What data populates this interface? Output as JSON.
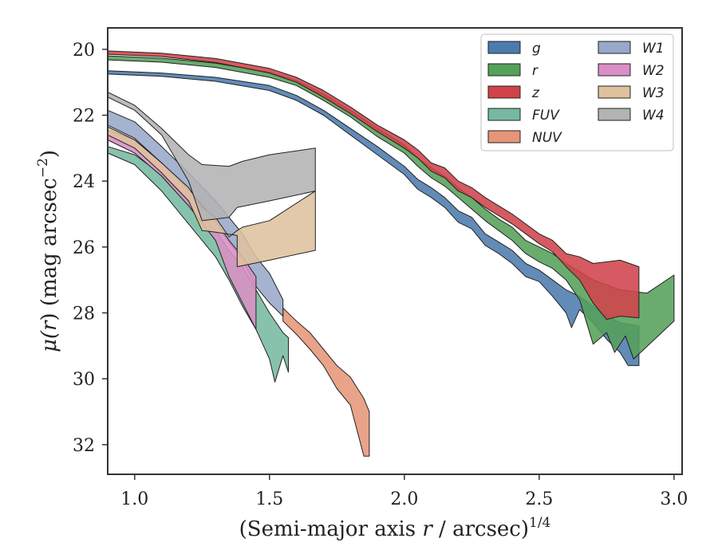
{
  "chart_data": {
    "type": "area",
    "xlabel": "(Semi-major axis r / arcsec)^1/4",
    "xlabel_parts": {
      "prefix": "(Semi-major axis ",
      "var": "r",
      "suffix": " / arcsec)",
      "exp": "1/4"
    },
    "ylabel": "μ(r) (mag arcsec^−2)",
    "ylabel_parts": {
      "mu": "μ(",
      "var": "r",
      "mid": ") (mag arcsec",
      "exp": "−2",
      "end": ")"
    },
    "xlim": [
      0.9,
      3.03
    ],
    "ylim": [
      32.9,
      19.35
    ],
    "y_inverted": true,
    "xticks": [
      1.0,
      1.5,
      2.0,
      2.5,
      3.0
    ],
    "xtick_labels": [
      "1.0",
      "1.5",
      "2.0",
      "2.5",
      "3.0"
    ],
    "yticks": [
      20,
      22,
      24,
      26,
      28,
      30,
      32
    ],
    "ytick_labels": [
      "20",
      "22",
      "24",
      "26",
      "28",
      "30",
      "32"
    ],
    "legend": {
      "placement": "top-right",
      "columns": 2
    },
    "series": [
      {
        "name": "g",
        "color": "#4c7bae",
        "upper": [
          [
            0.9,
            20.65
          ],
          [
            1.1,
            20.72
          ],
          [
            1.3,
            20.85
          ],
          [
            1.5,
            21.1
          ],
          [
            1.6,
            21.4
          ],
          [
            1.7,
            21.85
          ],
          [
            1.8,
            22.4
          ],
          [
            1.9,
            22.95
          ],
          [
            2.0,
            23.55
          ],
          [
            2.05,
            23.95
          ],
          [
            2.1,
            24.2
          ],
          [
            2.15,
            24.5
          ],
          [
            2.2,
            24.9
          ],
          [
            2.25,
            25.1
          ],
          [
            2.3,
            25.6
          ],
          [
            2.35,
            25.85
          ],
          [
            2.4,
            26.1
          ],
          [
            2.45,
            26.5
          ],
          [
            2.5,
            26.7
          ],
          [
            2.55,
            27.0
          ],
          [
            2.6,
            27.3
          ],
          [
            2.65,
            27.5
          ],
          [
            2.7,
            27.8
          ],
          [
            2.75,
            28.1
          ],
          [
            2.8,
            28.3
          ],
          [
            2.87,
            28.4
          ]
        ],
        "lower": [
          [
            0.9,
            20.75
          ],
          [
            1.1,
            20.82
          ],
          [
            1.3,
            20.97
          ],
          [
            1.5,
            21.25
          ],
          [
            1.6,
            21.55
          ],
          [
            1.7,
            22.0
          ],
          [
            1.8,
            22.6
          ],
          [
            1.9,
            23.2
          ],
          [
            2.0,
            23.8
          ],
          [
            2.05,
            24.25
          ],
          [
            2.1,
            24.5
          ],
          [
            2.15,
            24.8
          ],
          [
            2.2,
            25.25
          ],
          [
            2.25,
            25.45
          ],
          [
            2.3,
            25.95
          ],
          [
            2.35,
            26.2
          ],
          [
            2.4,
            26.5
          ],
          [
            2.45,
            26.9
          ],
          [
            2.5,
            27.05
          ],
          [
            2.55,
            27.5
          ],
          [
            2.6,
            28.0
          ],
          [
            2.62,
            28.45
          ],
          [
            2.65,
            27.9
          ],
          [
            2.7,
            28.3
          ],
          [
            2.75,
            28.8
          ],
          [
            2.8,
            29.2
          ],
          [
            2.83,
            29.6
          ],
          [
            2.87,
            29.6
          ]
        ]
      },
      {
        "name": "r",
        "color": "#55a05a",
        "upper": [
          [
            0.9,
            20.2
          ],
          [
            1.1,
            20.27
          ],
          [
            1.3,
            20.42
          ],
          [
            1.5,
            20.7
          ],
          [
            1.6,
            20.95
          ],
          [
            1.7,
            21.35
          ],
          [
            1.8,
            21.85
          ],
          [
            1.9,
            22.4
          ],
          [
            2.0,
            22.9
          ],
          [
            2.05,
            23.3
          ],
          [
            2.1,
            23.6
          ],
          [
            2.15,
            23.85
          ],
          [
            2.2,
            24.2
          ],
          [
            2.25,
            24.5
          ],
          [
            2.3,
            24.85
          ],
          [
            2.35,
            25.15
          ],
          [
            2.4,
            25.4
          ],
          [
            2.45,
            25.8
          ],
          [
            2.5,
            26.0
          ],
          [
            2.55,
            26.2
          ],
          [
            2.6,
            26.5
          ],
          [
            2.65,
            26.75
          ],
          [
            2.7,
            27.0
          ],
          [
            2.8,
            27.3
          ],
          [
            2.9,
            27.4
          ],
          [
            3.0,
            26.85
          ]
        ],
        "lower": [
          [
            0.9,
            20.32
          ],
          [
            1.1,
            20.39
          ],
          [
            1.3,
            20.55
          ],
          [
            1.5,
            20.85
          ],
          [
            1.6,
            21.1
          ],
          [
            1.7,
            21.55
          ],
          [
            1.8,
            22.05
          ],
          [
            1.9,
            22.65
          ],
          [
            2.0,
            23.15
          ],
          [
            2.05,
            23.55
          ],
          [
            2.1,
            23.9
          ],
          [
            2.15,
            24.15
          ],
          [
            2.2,
            24.5
          ],
          [
            2.25,
            24.85
          ],
          [
            2.3,
            25.2
          ],
          [
            2.35,
            25.5
          ],
          [
            2.4,
            25.8
          ],
          [
            2.45,
            26.2
          ],
          [
            2.5,
            26.45
          ],
          [
            2.55,
            26.65
          ],
          [
            2.6,
            27.0
          ],
          [
            2.65,
            27.6
          ],
          [
            2.7,
            28.95
          ],
          [
            2.75,
            28.6
          ],
          [
            2.78,
            29.2
          ],
          [
            2.82,
            28.7
          ],
          [
            2.85,
            29.4
          ],
          [
            3.0,
            28.25
          ]
        ]
      },
      {
        "name": "z",
        "color": "#d0434b",
        "upper": [
          [
            0.9,
            20.05
          ],
          [
            1.1,
            20.12
          ],
          [
            1.3,
            20.28
          ],
          [
            1.5,
            20.58
          ],
          [
            1.6,
            20.85
          ],
          [
            1.7,
            21.25
          ],
          [
            1.8,
            21.75
          ],
          [
            1.9,
            22.3
          ],
          [
            2.0,
            22.75
          ],
          [
            2.05,
            23.05
          ],
          [
            2.1,
            23.45
          ],
          [
            2.15,
            23.6
          ],
          [
            2.2,
            24.0
          ],
          [
            2.25,
            24.2
          ],
          [
            2.3,
            24.5
          ],
          [
            2.35,
            24.75
          ],
          [
            2.4,
            25.0
          ],
          [
            2.45,
            25.3
          ],
          [
            2.5,
            25.6
          ],
          [
            2.55,
            25.8
          ],
          [
            2.6,
            26.2
          ],
          [
            2.65,
            26.3
          ],
          [
            2.7,
            26.5
          ],
          [
            2.8,
            26.4
          ],
          [
            2.87,
            26.6
          ]
        ],
        "lower": [
          [
            0.9,
            20.15
          ],
          [
            1.1,
            20.22
          ],
          [
            1.3,
            20.4
          ],
          [
            1.5,
            20.72
          ],
          [
            1.6,
            21.0
          ],
          [
            1.7,
            21.45
          ],
          [
            1.8,
            21.95
          ],
          [
            1.9,
            22.5
          ],
          [
            2.0,
            23.0
          ],
          [
            2.05,
            23.3
          ],
          [
            2.1,
            23.7
          ],
          [
            2.15,
            23.9
          ],
          [
            2.2,
            24.3
          ],
          [
            2.25,
            24.5
          ],
          [
            2.3,
            24.8
          ],
          [
            2.35,
            25.05
          ],
          [
            2.4,
            25.3
          ],
          [
            2.45,
            25.6
          ],
          [
            2.5,
            25.9
          ],
          [
            2.55,
            26.15
          ],
          [
            2.6,
            26.6
          ],
          [
            2.65,
            27.0
          ],
          [
            2.7,
            27.7
          ],
          [
            2.75,
            28.2
          ],
          [
            2.8,
            28.1
          ],
          [
            2.87,
            28.15
          ]
        ]
      },
      {
        "name": "FUV",
        "color": "#76b9a0",
        "upper": [
          [
            0.9,
            22.95
          ],
          [
            1.0,
            23.2
          ],
          [
            1.1,
            23.8
          ],
          [
            1.2,
            24.6
          ],
          [
            1.3,
            25.5
          ],
          [
            1.35,
            26.1
          ],
          [
            1.4,
            26.6
          ],
          [
            1.45,
            27.3
          ],
          [
            1.5,
            28.0
          ],
          [
            1.55,
            28.6
          ],
          [
            1.57,
            28.75
          ]
        ],
        "lower": [
          [
            0.9,
            23.15
          ],
          [
            1.0,
            23.5
          ],
          [
            1.1,
            24.3
          ],
          [
            1.2,
            25.3
          ],
          [
            1.3,
            26.3
          ],
          [
            1.35,
            27.0
          ],
          [
            1.4,
            27.8
          ],
          [
            1.45,
            28.5
          ],
          [
            1.5,
            29.4
          ],
          [
            1.52,
            30.1
          ],
          [
            1.55,
            29.3
          ],
          [
            1.57,
            29.8
          ]
        ]
      },
      {
        "name": "NUV",
        "color": "#e69678",
        "upper": [
          [
            1.55,
            27.85
          ],
          [
            1.6,
            28.25
          ],
          [
            1.65,
            28.6
          ],
          [
            1.7,
            29.1
          ],
          [
            1.75,
            29.6
          ],
          [
            1.8,
            29.95
          ],
          [
            1.85,
            30.6
          ],
          [
            1.87,
            31.0
          ]
        ],
        "lower": [
          [
            1.55,
            28.25
          ],
          [
            1.6,
            28.65
          ],
          [
            1.65,
            29.1
          ],
          [
            1.7,
            29.6
          ],
          [
            1.75,
            30.3
          ],
          [
            1.8,
            30.8
          ],
          [
            1.85,
            32.35
          ],
          [
            1.87,
            32.35
          ]
        ]
      },
      {
        "name": "W1",
        "color": "#98a8c9",
        "upper": [
          [
            0.9,
            21.85
          ],
          [
            1.0,
            22.2
          ],
          [
            1.1,
            22.95
          ],
          [
            1.2,
            23.75
          ],
          [
            1.3,
            24.6
          ],
          [
            1.4,
            25.6
          ],
          [
            1.45,
            26.3
          ],
          [
            1.5,
            26.8
          ],
          [
            1.55,
            27.6
          ]
        ],
        "lower": [
          [
            0.9,
            22.3
          ],
          [
            1.0,
            22.7
          ],
          [
            1.1,
            23.45
          ],
          [
            1.2,
            24.3
          ],
          [
            1.3,
            25.3
          ],
          [
            1.4,
            26.4
          ],
          [
            1.45,
            27.2
          ],
          [
            1.5,
            27.7
          ],
          [
            1.55,
            28.1
          ]
        ]
      },
      {
        "name": "W2",
        "color": "#d98fc5",
        "upper": [
          [
            0.9,
            22.45
          ],
          [
            1.0,
            22.75
          ],
          [
            1.1,
            23.45
          ],
          [
            1.2,
            24.25
          ],
          [
            1.3,
            25.2
          ],
          [
            1.35,
            25.8
          ],
          [
            1.4,
            26.3
          ],
          [
            1.45,
            26.9
          ]
        ],
        "lower": [
          [
            0.9,
            22.75
          ],
          [
            1.0,
            23.15
          ],
          [
            1.1,
            23.85
          ],
          [
            1.2,
            24.75
          ],
          [
            1.3,
            25.8
          ],
          [
            1.35,
            26.9
          ],
          [
            1.4,
            27.7
          ],
          [
            1.45,
            28.5
          ]
        ]
      },
      {
        "name": "W3",
        "color": "#dec29e",
        "upper": [
          [
            0.9,
            22.35
          ],
          [
            1.0,
            22.75
          ],
          [
            1.1,
            23.45
          ],
          [
            1.2,
            24.2
          ],
          [
            1.25,
            24.8
          ],
          [
            1.3,
            25.1
          ],
          [
            1.35,
            25.7
          ],
          [
            1.38,
            25.5
          ],
          [
            1.4,
            25.4
          ],
          [
            1.5,
            25.2
          ],
          [
            1.67,
            24.3
          ]
        ],
        "lower": [
          [
            0.9,
            22.6
          ],
          [
            1.0,
            23.0
          ],
          [
            1.1,
            23.75
          ],
          [
            1.2,
            24.6
          ],
          [
            1.25,
            25.5
          ],
          [
            1.3,
            25.55
          ],
          [
            1.38,
            25.65
          ],
          [
            1.38,
            26.6
          ],
          [
            1.5,
            26.4
          ],
          [
            1.67,
            26.1
          ]
        ]
      },
      {
        "name": "W4",
        "color": "#b3b3b3",
        "upper": [
          [
            0.9,
            21.3
          ],
          [
            1.0,
            21.7
          ],
          [
            1.1,
            22.4
          ],
          [
            1.2,
            23.2
          ],
          [
            1.25,
            23.5
          ],
          [
            1.35,
            23.55
          ],
          [
            1.4,
            23.4
          ],
          [
            1.5,
            23.2
          ],
          [
            1.67,
            23.0
          ]
        ],
        "lower": [
          [
            0.9,
            21.45
          ],
          [
            1.0,
            21.85
          ],
          [
            1.1,
            22.6
          ],
          [
            1.2,
            24.0
          ],
          [
            1.25,
            25.2
          ],
          [
            1.3,
            25.15
          ],
          [
            1.35,
            25.1
          ],
          [
            1.38,
            24.8
          ],
          [
            1.5,
            24.6
          ],
          [
            1.67,
            24.3
          ]
        ]
      }
    ]
  }
}
